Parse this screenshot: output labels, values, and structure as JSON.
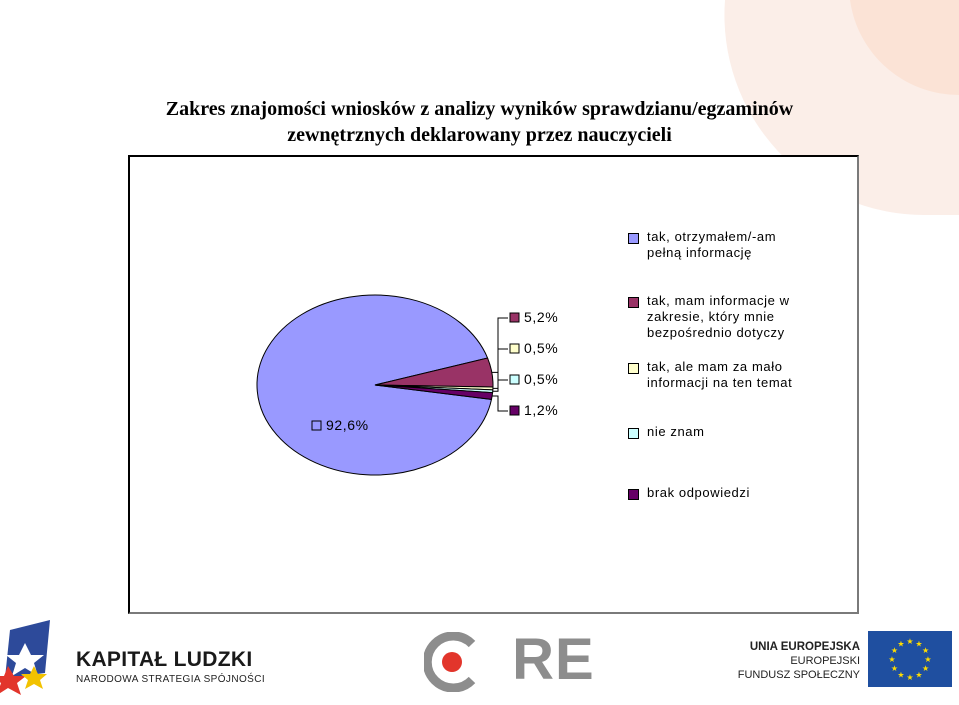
{
  "title": {
    "line1": "Zakres znajomości wniosków z analizy wyników sprawdzianu/egzaminów",
    "line2": "zewnętrznych deklarowany przez nauczycieli"
  },
  "chart_data": {
    "type": "pie",
    "title": "Zakres znajomości wniosków z analizy wyników sprawdzianu/egzaminów zewnętrznych deklarowany przez nauczycieli",
    "legend_position": "right",
    "slices": [
      {
        "label": "tak, otrzymałem/-am pełną informację",
        "value": 92.6,
        "display": "92,6%",
        "color": "#9999ff"
      },
      {
        "label": "tak, mam informacje w zakresie, który mnie bezpośrednio dotyczy",
        "value": 5.2,
        "display": "5,2%",
        "color": "#993366"
      },
      {
        "label": "tak, ale mam za mało informacji na ten temat",
        "value": 0.5,
        "display": "0,5%",
        "color": "#ffffcc"
      },
      {
        "label": "nie znam",
        "value": 0.5,
        "display": "0,5%",
        "color": "#ccffff"
      },
      {
        "label": "brak odpowiedzi",
        "value": 1.2,
        "display": "1,2%",
        "color": "#660066"
      }
    ]
  },
  "legend": [
    {
      "text": "tak, otrzymałem/-am\npełną informację",
      "color": "#9999ff"
    },
    {
      "text": "tak, mam informacje w\nzakresie, który mnie\nbezpośrednio dotyczy",
      "color": "#993366"
    },
    {
      "text": "tak, ale mam za mało\ninformacji na ten temat",
      "color": "#ffffcc"
    },
    {
      "text": "nie znam",
      "color": "#ccffff"
    },
    {
      "text": "brak odpowiedzi",
      "color": "#660066"
    }
  ],
  "footer": {
    "kapital_ludzki": "KAPITAŁ LUDZKI",
    "strategia": "NARODOWA STRATEGIA SPÓJNOŚCI",
    "ore": "ORE",
    "eu_line1": "UNIA EUROPEJSKA",
    "eu_line2": "EUROPEJSKI",
    "eu_line3": "FUNDUSZ SPOŁECZNY"
  },
  "colors": {
    "deco_shape": "#fbe3d6",
    "ore_red": "#e2352b",
    "eu_blue": "#1f4fa0",
    "eu_star": "#ffdd00"
  }
}
